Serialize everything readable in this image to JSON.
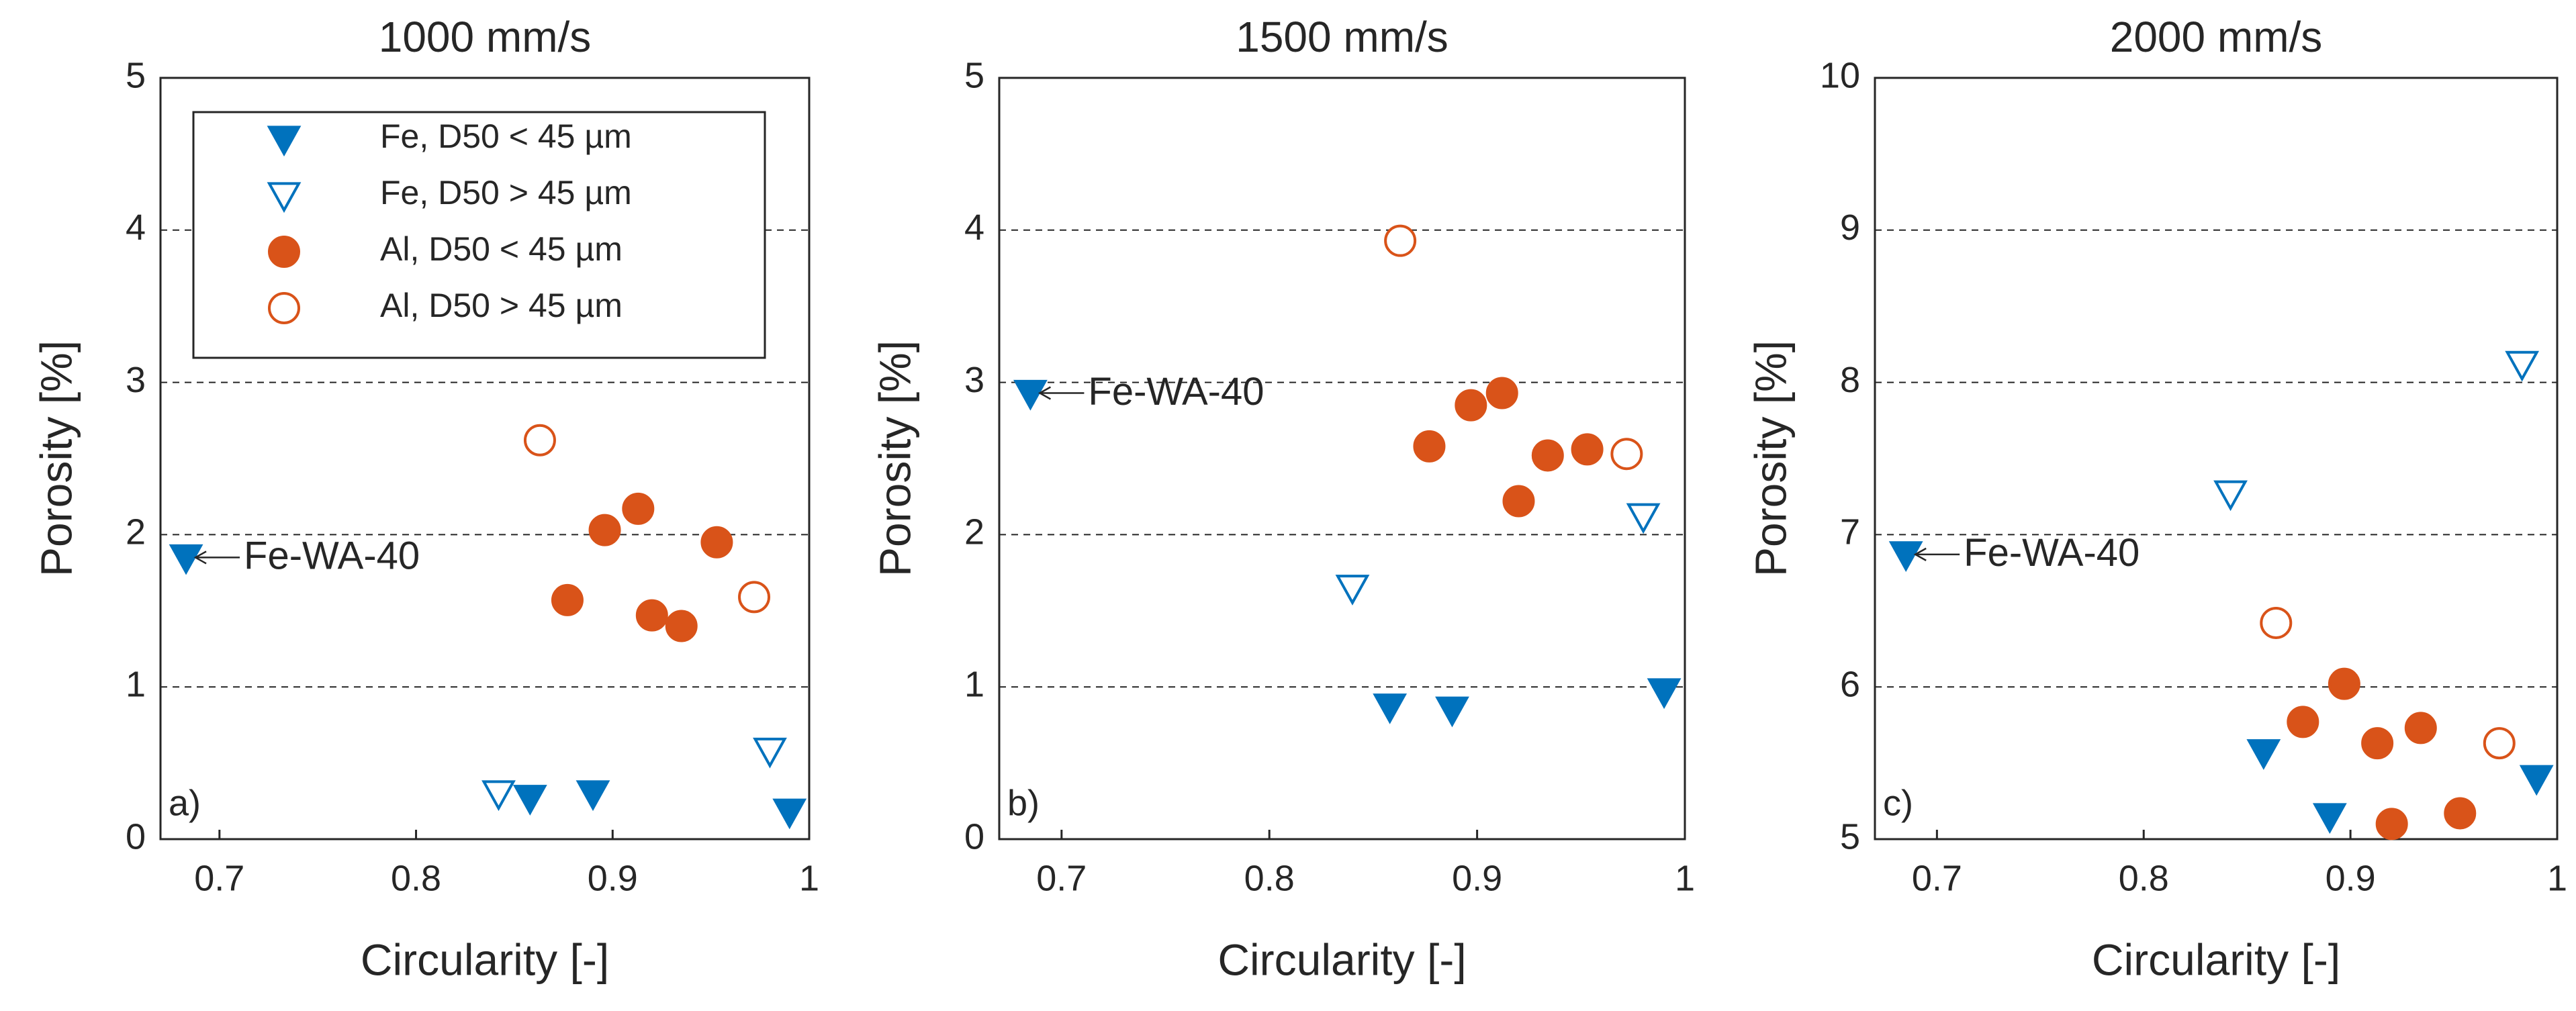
{
  "chart_data": [
    {
      "type": "scatter",
      "title": "1000 mm/s",
      "x_label": "Circularity [-]",
      "y_label": "Porosity [%]",
      "panel_label": "a)",
      "xlim": [
        0.67,
        1.0
      ],
      "xticks": [
        0.7,
        0.8,
        0.9,
        1
      ],
      "ylim": [
        0,
        5
      ],
      "yticks": [
        0,
        1,
        2,
        3,
        4,
        5
      ],
      "grid": true,
      "legend": "upper left",
      "series": [
        {
          "name": "Fe, D50 < 45 µm",
          "color": "#0072BD",
          "marker": "triangle-down",
          "filled": true,
          "x": [
            0.683,
            0.858,
            0.89,
            0.99
          ],
          "values": [
            1.85,
            0.27,
            0.3,
            0.18
          ]
        },
        {
          "name": "Fe, D50 > 45 µm",
          "color": "#0072BD",
          "marker": "triangle-down",
          "filled": false,
          "x": [
            0.842,
            0.98
          ],
          "values": [
            0.3,
            0.58
          ]
        },
        {
          "name": "Al, D50 < 45 µm",
          "color": "#D95319",
          "marker": "circle",
          "filled": true,
          "x": [
            0.877,
            0.896,
            0.913,
            0.92,
            0.935,
            0.953
          ],
          "values": [
            1.57,
            2.03,
            2.17,
            1.47,
            1.4,
            1.95
          ]
        },
        {
          "name": "Al, D50 > 45 µm",
          "color": "#D95319",
          "marker": "circle",
          "filled": false,
          "x": [
            0.863,
            0.972
          ],
          "values": [
            2.62,
            1.59
          ]
        }
      ],
      "annotations": [
        {
          "text": "Fe-WA-40",
          "x": 0.683,
          "y": 1.85
        }
      ]
    },
    {
      "type": "scatter",
      "title": "1500 mm/s",
      "x_label": "Circularity [-]",
      "y_label": "Porosity [%]",
      "panel_label": "b)",
      "xlim": [
        0.67,
        1.0
      ],
      "xticks": [
        0.7,
        0.8,
        0.9,
        1
      ],
      "ylim": [
        0,
        5
      ],
      "yticks": [
        0,
        1,
        2,
        3,
        4,
        5
      ],
      "grid": true,
      "series": [
        {
          "color": "#0072BD",
          "marker": "triangle-down",
          "filled": true,
          "x": [
            0.685,
            0.858,
            0.888,
            0.99
          ],
          "values": [
            2.93,
            0.87,
            0.85,
            0.97
          ]
        },
        {
          "color": "#0072BD",
          "marker": "triangle-down",
          "filled": false,
          "x": [
            0.84,
            0.98
          ],
          "values": [
            1.65,
            2.12
          ]
        },
        {
          "color": "#D95319",
          "marker": "circle",
          "filled": true,
          "x": [
            0.877,
            0.897,
            0.912,
            0.92,
            0.934,
            0.953
          ],
          "values": [
            2.58,
            2.85,
            2.93,
            2.22,
            2.52,
            2.56
          ]
        },
        {
          "color": "#D95319",
          "marker": "circle",
          "filled": false,
          "x": [
            0.863,
            0.972
          ],
          "values": [
            3.93,
            2.53
          ]
        }
      ],
      "annotations": [
        {
          "text": "Fe-WA-40",
          "x": 0.685,
          "y": 2.93
        }
      ]
    },
    {
      "type": "scatter",
      "title": "2000 mm/s",
      "x_label": "Circularity [-]",
      "y_label": "Porosity [%]",
      "panel_label": "c)",
      "xlim": [
        0.67,
        1.0
      ],
      "xticks": [
        0.7,
        0.8,
        0.9,
        1
      ],
      "ylim": [
        5,
        10
      ],
      "yticks": [
        5,
        6,
        7,
        8,
        9,
        10
      ],
      "grid": true,
      "series": [
        {
          "color": "#0072BD",
          "marker": "triangle-down",
          "filled": true,
          "x": [
            0.685,
            0.858,
            0.89,
            0.99
          ],
          "values": [
            6.87,
            5.57,
            5.15,
            5.4
          ]
        },
        {
          "color": "#0072BD",
          "marker": "triangle-down",
          "filled": false,
          "x": [
            0.842,
            0.983
          ],
          "values": [
            7.27,
            8.12
          ]
        },
        {
          "color": "#D95319",
          "marker": "circle",
          "filled": true,
          "x": [
            0.877,
            0.897,
            0.913,
            0.92,
            0.934,
            0.953
          ],
          "values": [
            5.77,
            6.02,
            5.63,
            5.1,
            5.73,
            5.17
          ]
        },
        {
          "color": "#D95319",
          "marker": "circle",
          "filled": false,
          "x": [
            0.864,
            0.972
          ],
          "values": [
            6.42,
            5.63
          ]
        }
      ],
      "annotations": [
        {
          "text": "Fe-WA-40",
          "x": 0.685,
          "y": 6.87
        }
      ]
    }
  ]
}
